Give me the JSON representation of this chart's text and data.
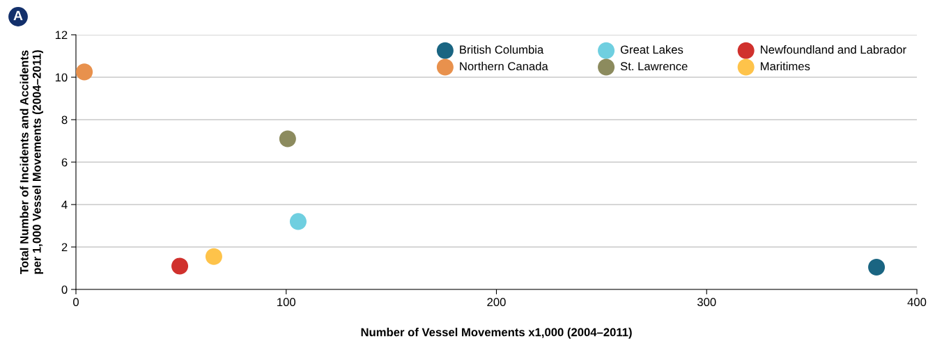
{
  "chart_data": {
    "type": "scatter",
    "xlabel": "Number of Vessel Movements x1,000 (2004–2011)",
    "ylabel": "Total Number of Incidents and Accidents\nper 1,000 Vessel Movements (2004–2011)",
    "annotations": [
      "A"
    ],
    "series": [
      {
        "name": "British Columbia",
        "color": "#1a6582",
        "x": [
          380.8
        ],
        "values": [
          1.05
        ]
      },
      {
        "name": "Northern Canada",
        "color": "#e8914d",
        "x": [
          4.0
        ],
        "values": [
          10.25
        ]
      },
      {
        "name": "Great Lakes",
        "color": "#6fcfe0",
        "x": [
          105.7
        ],
        "values": [
          3.2
        ]
      },
      {
        "name": "St. Lawrence",
        "color": "#8c8b5e",
        "x": [
          100.7
        ],
        "values": [
          7.1
        ]
      },
      {
        "name": "Newfoundland and Labrador",
        "color": "#d0312d",
        "x": [
          49.4
        ],
        "values": [
          1.1
        ]
      },
      {
        "name": "Maritimes",
        "color": "#fec34a",
        "x": [
          65.6
        ],
        "values": [
          1.55
        ]
      }
    ],
    "xlim": [
      0,
      400
    ],
    "xticks": [
      0,
      100,
      200,
      300,
      400
    ],
    "ylim": [
      0,
      12
    ],
    "yticks": [
      0,
      2,
      4,
      6,
      8,
      10,
      12
    ],
    "grid": "y",
    "legend": "top right",
    "marker": "circle"
  }
}
